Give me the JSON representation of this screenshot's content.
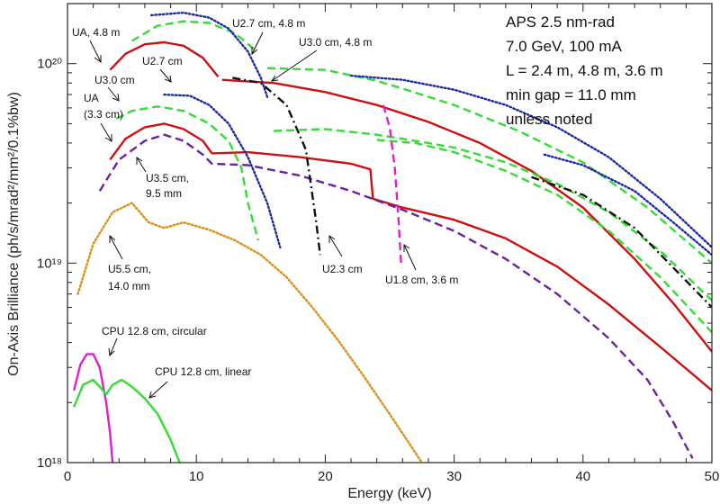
{
  "chart_data": {
    "type": "line",
    "title": "",
    "xlabel": "Energy (keV)",
    "ylabel": "On-Axis Brilliance (ph/s/mrad²/mm²/0.1%bw)",
    "xlim": [
      0,
      50
    ],
    "ylim": [
      1e+18,
      2e+20
    ],
    "yscale": "log",
    "xticks": [
      0,
      10,
      20,
      30,
      40,
      50
    ],
    "yticks": [
      {
        "value": 1e+18,
        "label": "10¹⁸"
      },
      {
        "value": 1e+19,
        "label": "10¹⁹"
      },
      {
        "value": 1e+20,
        "label": "10²⁰"
      }
    ],
    "grid": false,
    "info_box": [
      "APS 2.5 nm-rad",
      "7.0 GeV, 100 mA",
      "L = 2.4 m, 4.8 m, 3.6 m",
      "min gap = 11.0 mm",
      "unless noted"
    ],
    "series": [
      {
        "id": "ua48",
        "color": "#cc1111",
        "style": "solid",
        "points": [
          [
            3.3,
            9.3e+19
          ],
          [
            4.5,
            1.12e+20
          ],
          [
            6,
            1.25e+20
          ],
          [
            7.5,
            1.28e+20
          ],
          [
            9,
            1.23e+20
          ],
          [
            10.5,
            1.07e+20
          ],
          [
            11.7,
            8.6e+19
          ]
        ]
      },
      {
        "id": "ua48_h",
        "color": "#cc1111",
        "style": "solid",
        "points": [
          [
            12,
            8.3e+19
          ],
          [
            16,
            8e+19
          ],
          [
            20,
            7.2e+19
          ],
          [
            24,
            6.2e+19
          ],
          [
            28,
            5.1e+19
          ],
          [
            32,
            4e+19
          ],
          [
            36,
            2.9e+19
          ],
          [
            40,
            1.9e+19
          ],
          [
            44,
            1.05e+19
          ],
          [
            47,
            6.3e+18
          ],
          [
            50,
            3.6e+18
          ]
        ]
      },
      {
        "id": "ua33",
        "color": "#cc1111",
        "style": "solid",
        "points": [
          [
            3.3,
            3.3e+19
          ],
          [
            4.5,
            4.2e+19
          ],
          [
            6,
            4.8e+19
          ],
          [
            7.5,
            5e+19
          ],
          [
            9,
            4.7e+19
          ],
          [
            10.5,
            4.1e+19
          ],
          [
            11.2,
            3.55e+19
          ]
        ]
      },
      {
        "id": "ua33_h",
        "color": "#cc1111",
        "style": "solid",
        "points": [
          [
            11.2,
            3.55e+19
          ],
          [
            14,
            3.6e+19
          ],
          [
            18,
            3.4e+19
          ],
          [
            22,
            3.15e+19
          ],
          [
            23.5,
            2.95e+19
          ],
          [
            23.7,
            2.1e+19
          ],
          [
            26,
            1.9e+19
          ],
          [
            30,
            1.65e+19
          ],
          [
            34,
            1.33e+19
          ],
          [
            38,
            9.6e+18
          ],
          [
            42,
            6.2e+18
          ],
          [
            46,
            3.8e+18
          ],
          [
            50,
            2.3e+18
          ]
        ]
      },
      {
        "id": "u30_48",
        "color": "#33dd33",
        "style": "dashed",
        "points": [
          [
            5,
            1.3e+20
          ],
          [
            7,
            1.55e+20
          ],
          [
            9,
            1.63e+20
          ],
          [
            11,
            1.6e+20
          ],
          [
            13,
            1.42e+20
          ],
          [
            14.5,
            1.18e+20
          ]
        ]
      },
      {
        "id": "u30_48_h",
        "color": "#33dd33",
        "style": "dashed",
        "points": [
          [
            15.5,
            9.5e+19
          ],
          [
            20,
            9.3e+19
          ],
          [
            24,
            8.2e+19
          ],
          [
            26,
            7.5e+19
          ],
          [
            30,
            6.2e+19
          ],
          [
            35,
            4.6e+19
          ],
          [
            40,
            3.2e+19
          ],
          [
            45,
            1.9e+19
          ],
          [
            50,
            1e+19
          ]
        ]
      },
      {
        "id": "u30_24",
        "color": "#33dd33",
        "style": "dashed",
        "points": [
          [
            3.8,
            5.3e+19
          ],
          [
            5,
            5.8e+19
          ],
          [
            7,
            6.1e+19
          ],
          [
            9,
            5.8e+19
          ],
          [
            11,
            5e+19
          ],
          [
            12.5,
            4.1e+19
          ],
          [
            13.5,
            3e+19
          ],
          [
            14,
            2e+19
          ],
          [
            14.8,
            1.3e+19
          ]
        ]
      },
      {
        "id": "u30_24_h",
        "color": "#33dd33",
        "style": "dashed",
        "points": [
          [
            16,
            4.6e+19
          ],
          [
            20,
            4.7e+19
          ],
          [
            24,
            4.4e+19
          ],
          [
            27,
            4.1e+19
          ],
          [
            30,
            3.8e+19
          ],
          [
            34,
            3.2e+19
          ],
          [
            38,
            2.5e+19
          ],
          [
            42,
            1.8e+19
          ],
          [
            46,
            1.15e+19
          ],
          [
            50,
            6.5e+18
          ]
        ]
      },
      {
        "id": "u30_24_h2",
        "color": "#33dd33",
        "style": "dashed",
        "points": [
          [
            24,
            4.15e+19
          ],
          [
            27,
            4e+19
          ],
          [
            30,
            3.6e+19
          ],
          [
            34,
            2.9e+19
          ],
          [
            38,
            2.2e+19
          ],
          [
            42,
            1.45e+19
          ],
          [
            46,
            8.5e+18
          ],
          [
            50,
            4.5e+18
          ]
        ]
      },
      {
        "id": "u27_48",
        "color": "#1a2a9e",
        "style": "dotted",
        "points": [
          [
            6.5,
            1.75e+20
          ],
          [
            9,
            1.8e+20
          ],
          [
            11,
            1.7e+20
          ],
          [
            12.5,
            1.5e+20
          ],
          [
            14,
            1.15e+20
          ],
          [
            15,
            8.5e+19
          ],
          [
            15.5,
            6.8e+19
          ]
        ]
      },
      {
        "id": "u27_48_h",
        "color": "#1a2a9e",
        "style": "dotted",
        "points": [
          [
            22,
            8.7e+19
          ],
          [
            26,
            8.3e+19
          ],
          [
            30,
            7.4e+19
          ],
          [
            34,
            6.2e+19
          ],
          [
            38,
            4.8e+19
          ],
          [
            42,
            3.4e+19
          ],
          [
            46,
            2.1e+19
          ],
          [
            50,
            1.2e+19
          ]
        ]
      },
      {
        "id": "u27_24",
        "color": "#1a2a9e",
        "style": "dotted",
        "points": [
          [
            7.5,
            7e+19
          ],
          [
            9.5,
            6.9e+19
          ],
          [
            11,
            6.2e+19
          ],
          [
            12.5,
            5e+19
          ],
          [
            14,
            3.4e+19
          ],
          [
            15.5,
            2e+19
          ],
          [
            16.5,
            1.2e+19
          ]
        ]
      },
      {
        "id": "u27_24_h",
        "color": "#1a2a9e",
        "style": "dotted",
        "points": [
          [
            37,
            3.5e+19
          ],
          [
            40,
            3.1e+19
          ],
          [
            44,
            2.3e+19
          ],
          [
            47,
            1.6e+19
          ],
          [
            50,
            1.1e+19
          ]
        ]
      },
      {
        "id": "u35",
        "color": "#6a22a0",
        "style": "dashed",
        "points": [
          [
            2.5,
            2.3e+19
          ],
          [
            4,
            3.3e+19
          ],
          [
            6,
            4.1e+19
          ],
          [
            7.5,
            4.4e+19
          ],
          [
            9,
            4.1e+19
          ],
          [
            10.5,
            3.5e+19
          ],
          [
            11.2,
            3.15e+19
          ],
          [
            14,
            3.1e+19
          ],
          [
            18,
            2.75e+19
          ],
          [
            22,
            2.3e+19
          ],
          [
            26,
            1.85e+19
          ],
          [
            30,
            1.45e+19
          ],
          [
            34,
            1.05e+19
          ],
          [
            38,
            7e+18
          ],
          [
            42,
            4.2e+18
          ],
          [
            45,
            2.6e+18
          ],
          [
            47,
            1.6e+18
          ],
          [
            48.5,
            1.05e+18
          ]
        ]
      },
      {
        "id": "u23",
        "color": "#111111",
        "style": "dashdot",
        "points": [
          [
            12.8,
            8.5e+19
          ],
          [
            15,
            8e+19
          ],
          [
            17,
            6.2e+19
          ],
          [
            18.5,
            3.7e+19
          ],
          [
            19.3,
            1.6e+19
          ],
          [
            19.6,
            1.1e+19
          ]
        ]
      },
      {
        "id": "u23_h",
        "color": "#111111",
        "style": "dashdot",
        "points": [
          [
            36,
            2.7e+19
          ],
          [
            40,
            2.2e+19
          ],
          [
            44,
            1.5e+19
          ],
          [
            47,
            9.5e+18
          ],
          [
            50,
            6e+18
          ]
        ]
      },
      {
        "id": "u18",
        "color": "#dd22cc",
        "style": "dashed",
        "points": [
          [
            24.5,
            6.2e+19
          ],
          [
            25,
            4.8e+19
          ],
          [
            25.4,
            3e+19
          ],
          [
            25.7,
            1.6e+19
          ],
          [
            25.9,
            9.5e+18
          ]
        ]
      },
      {
        "id": "u55",
        "color": "#d9901a",
        "style": "dotted",
        "points": [
          [
            0.8,
            7e+18
          ],
          [
            2,
            1.25e+19
          ],
          [
            3.5,
            1.8e+19
          ],
          [
            5,
            2e+19
          ],
          [
            6.3,
            1.6e+19
          ],
          [
            7.5,
            1.5e+19
          ],
          [
            9,
            1.6e+19
          ],
          [
            11,
            1.47e+19
          ],
          [
            13,
            1.3e+19
          ],
          [
            15,
            1.1e+19
          ],
          [
            17,
            8.5e+18
          ],
          [
            19,
            6e+18
          ],
          [
            21,
            4.1e+18
          ],
          [
            23,
            2.7e+18
          ],
          [
            25,
            1.75e+18
          ],
          [
            26.5,
            1.25e+18
          ],
          [
            27.5,
            1e+18
          ]
        ]
      },
      {
        "id": "cpu_circ",
        "color": "#dd22cc",
        "style": "solid",
        "points": [
          [
            0.5,
            2.3e+18
          ],
          [
            1,
            3.1e+18
          ],
          [
            1.5,
            3.5e+18
          ],
          [
            2,
            3.5e+18
          ],
          [
            2.5,
            3e+18
          ],
          [
            3,
            2e+18
          ],
          [
            3.3,
            1.4e+18
          ],
          [
            3.5,
            1e+18
          ]
        ]
      },
      {
        "id": "cpu_lin",
        "color": "#33dd33",
        "style": "solid",
        "points": [
          [
            0.5,
            1.9e+18
          ],
          [
            1.2,
            2.45e+18
          ],
          [
            2,
            2.6e+18
          ],
          [
            2.5,
            2.4e+18
          ],
          [
            3,
            2.2e+18
          ],
          [
            3.5,
            2.45e+18
          ],
          [
            4.2,
            2.6e+18
          ],
          [
            5,
            2.4e+18
          ],
          [
            6,
            2.1e+18
          ],
          [
            7,
            1.75e+18
          ],
          [
            8,
            1.3e+18
          ],
          [
            8.7,
            1e+18
          ]
        ]
      }
    ],
    "annotations": [
      {
        "id": "ann-ua48",
        "text": "UA, 4.8 m"
      },
      {
        "id": "ann-u30",
        "text": "U3.0 cm"
      },
      {
        "id": "ann-u27",
        "text": "U2.7 cm"
      },
      {
        "id": "ann-ua33a",
        "text": "UA"
      },
      {
        "id": "ann-ua33b",
        "text": "(3.3 cm)"
      },
      {
        "id": "ann-u2748",
        "text": "U2.7 cm, 4.8 m"
      },
      {
        "id": "ann-u3048",
        "text": "U3.0 cm, 4.8 m"
      },
      {
        "id": "ann-u35a",
        "text": "U3.5 cm,"
      },
      {
        "id": "ann-u35b",
        "text": "9.5 mm"
      },
      {
        "id": "ann-u55a",
        "text": "U5.5 cm,"
      },
      {
        "id": "ann-u55b",
        "text": "14.0 mm"
      },
      {
        "id": "ann-u23",
        "text": "U2.3 cm"
      },
      {
        "id": "ann-u18",
        "text": "U1.8 cm, 3.6 m"
      },
      {
        "id": "ann-cpuc",
        "text": "CPU 12.8 cm, circular"
      },
      {
        "id": "ann-cpul",
        "text": "CPU 12.8 cm, linear"
      }
    ]
  }
}
